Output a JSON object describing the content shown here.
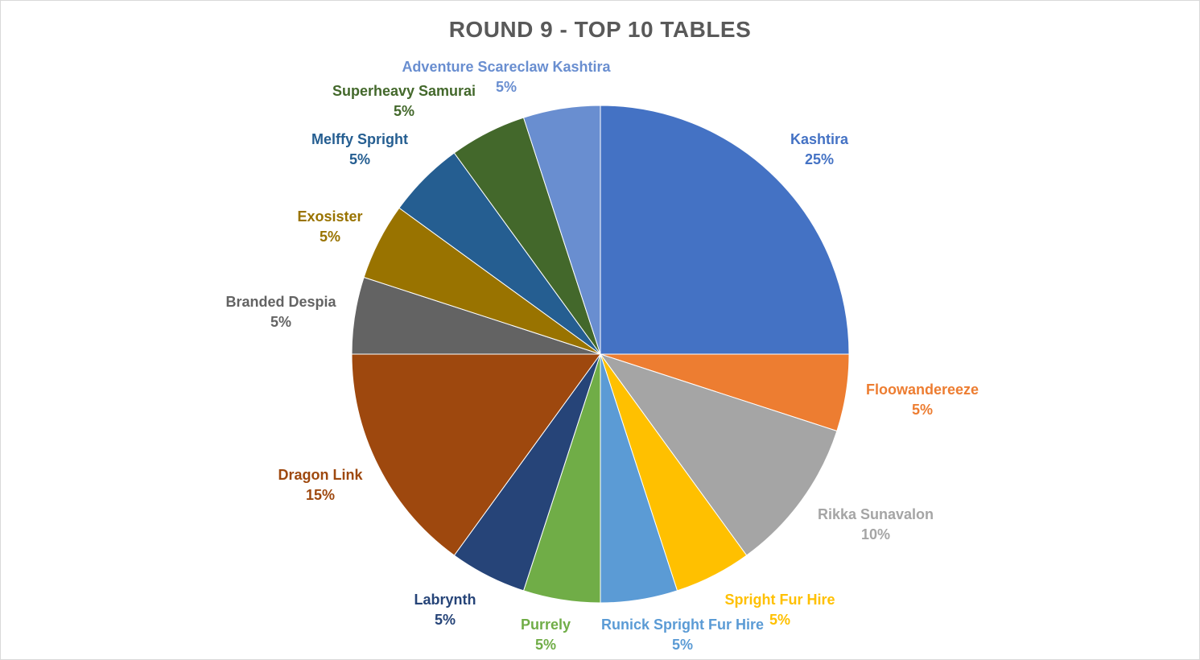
{
  "chart_data": {
    "type": "pie",
    "title": "ROUND 9 - TOP 10 TABLES",
    "slices": [
      {
        "label": "Kashtira",
        "value": 25,
        "pct_text": "25%",
        "color": "#4472C4"
      },
      {
        "label": "Floowandereeze",
        "value": 5,
        "pct_text": "5%",
        "color": "#ED7D31"
      },
      {
        "label": "Rikka Sunavalon",
        "value": 10,
        "pct_text": "10%",
        "color": "#A5A5A5"
      },
      {
        "label": "Spright Fur Hire",
        "value": 5,
        "pct_text": "5%",
        "color": "#FFC000"
      },
      {
        "label": "Runick Spright Fur Hire",
        "value": 5,
        "pct_text": "5%",
        "color": "#5B9BD5"
      },
      {
        "label": "Purrely",
        "value": 5,
        "pct_text": "5%",
        "color": "#70AD47"
      },
      {
        "label": "Labrynth",
        "value": 5,
        "pct_text": "5%",
        "color": "#264478"
      },
      {
        "label": "Dragon Link",
        "value": 15,
        "pct_text": "15%",
        "color": "#9E480E"
      },
      {
        "label": "Branded Despia",
        "value": 5,
        "pct_text": "5%",
        "color": "#636363"
      },
      {
        "label": "Exosister",
        "value": 5,
        "pct_text": "5%",
        "color": "#997300"
      },
      {
        "label": "Melffy Spright",
        "value": 5,
        "pct_text": "5%",
        "color": "#255E91"
      },
      {
        "label": "Superheavy Samurai",
        "value": 5,
        "pct_text": "5%",
        "color": "#43682B"
      },
      {
        "label": "Adventure Scareclaw Kashtira",
        "value": 5,
        "pct_text": "5%",
        "color": "#698ED0"
      }
    ]
  }
}
